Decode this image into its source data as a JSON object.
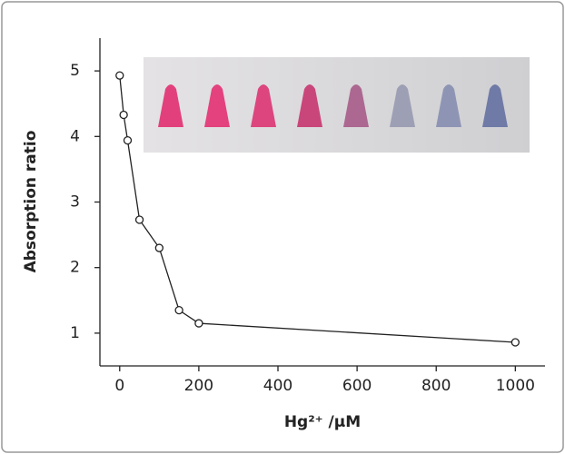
{
  "chart_data": {
    "type": "line",
    "x_label": "Hg²⁺ /μM",
    "y_label": "Absorption ratio",
    "x": [
      0,
      10,
      20,
      50,
      100,
      150,
      200,
      1000
    ],
    "series": [
      {
        "color": "#222222",
        "values": [
          4.93,
          4.33,
          3.94,
          2.73,
          2.3,
          1.35,
          1.15,
          0.86
        ]
      }
    ],
    "xlim": [
      -50,
      1075
    ],
    "ylim": [
      0.5,
      5.5
    ],
    "xticks": [
      0,
      200,
      400,
      600,
      800,
      1000
    ],
    "yticks": [
      1,
      2,
      3,
      4,
      5
    ]
  }
}
